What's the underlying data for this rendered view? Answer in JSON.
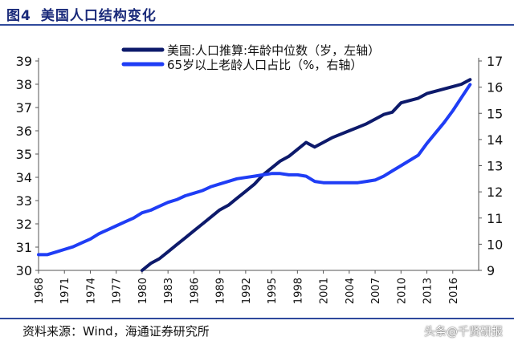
{
  "figure": {
    "label": "图4",
    "title": "美国人口结构变化",
    "source": "资料来源：Wind，海通证券研究所",
    "watermark": "头条@千贤研报"
  },
  "colors": {
    "median_age": "#0d1a6b",
    "elderly_share": "#1f3df5",
    "rule": "#2f4a9c"
  },
  "chart_data": {
    "type": "line",
    "title": "美国人口结构变化",
    "x_ticks": [
      "1968",
      "1971",
      "1974",
      "1977",
      "1980",
      "1983",
      "1986",
      "1989",
      "1992",
      "1995",
      "1998",
      "2001",
      "2004",
      "2007",
      "2010",
      "2013",
      "2016"
    ],
    "xlim": [
      1968,
      2019
    ],
    "y_left": {
      "lim": [
        30,
        39
      ],
      "ticks": [
        30,
        31,
        32,
        33,
        34,
        35,
        36,
        37,
        38,
        39
      ]
    },
    "y_right": {
      "lim": [
        9,
        17
      ],
      "ticks": [
        9,
        10,
        11,
        12,
        13,
        14,
        15,
        16,
        17
      ]
    },
    "legend_position": "top-right",
    "series": [
      {
        "name": "美国:人口推算:年龄中位数（岁，左轴）",
        "axis": "left",
        "x": [
          1980,
          1981,
          1982,
          1983,
          1984,
          1985,
          1986,
          1987,
          1988,
          1989,
          1990,
          1991,
          1992,
          1993,
          1994,
          1995,
          1996,
          1997,
          1998,
          1999,
          2000,
          2001,
          2002,
          2003,
          2004,
          2005,
          2006,
          2007,
          2008,
          2009,
          2010,
          2011,
          2012,
          2013,
          2014,
          2015,
          2016,
          2017,
          2018
        ],
        "values": [
          30.0,
          30.3,
          30.5,
          30.8,
          31.1,
          31.4,
          31.7,
          32.0,
          32.3,
          32.6,
          32.8,
          33.1,
          33.4,
          33.7,
          34.1,
          34.4,
          34.7,
          34.9,
          35.2,
          35.5,
          35.3,
          35.5,
          35.7,
          35.85,
          36.0,
          36.15,
          36.3,
          36.5,
          36.7,
          36.8,
          37.2,
          37.3,
          37.4,
          37.6,
          37.7,
          37.8,
          37.9,
          38.0,
          38.2
        ]
      },
      {
        "name": "65岁以上老龄人口占比（%，右轴）",
        "axis": "right",
        "x": [
          1968,
          1969,
          1970,
          1971,
          1972,
          1973,
          1974,
          1975,
          1976,
          1977,
          1978,
          1979,
          1980,
          1981,
          1982,
          1983,
          1984,
          1985,
          1986,
          1987,
          1988,
          1989,
          1990,
          1991,
          1992,
          1993,
          1994,
          1995,
          1996,
          1997,
          1998,
          1999,
          2000,
          2001,
          2002,
          2003,
          2004,
          2005,
          2006,
          2007,
          2008,
          2009,
          2010,
          2011,
          2012,
          2013,
          2014,
          2015,
          2016,
          2017,
          2018
        ],
        "values": [
          9.6,
          9.6,
          9.7,
          9.8,
          9.9,
          10.05,
          10.2,
          10.4,
          10.55,
          10.7,
          10.85,
          11.0,
          11.2,
          11.3,
          11.45,
          11.6,
          11.7,
          11.85,
          11.95,
          12.05,
          12.2,
          12.3,
          12.4,
          12.5,
          12.55,
          12.6,
          12.65,
          12.7,
          12.7,
          12.65,
          12.65,
          12.6,
          12.4,
          12.35,
          12.35,
          12.35,
          12.35,
          12.35,
          12.4,
          12.45,
          12.6,
          12.8,
          13.0,
          13.2,
          13.4,
          13.85,
          14.25,
          14.65,
          15.1,
          15.6,
          16.1
        ]
      }
    ]
  }
}
